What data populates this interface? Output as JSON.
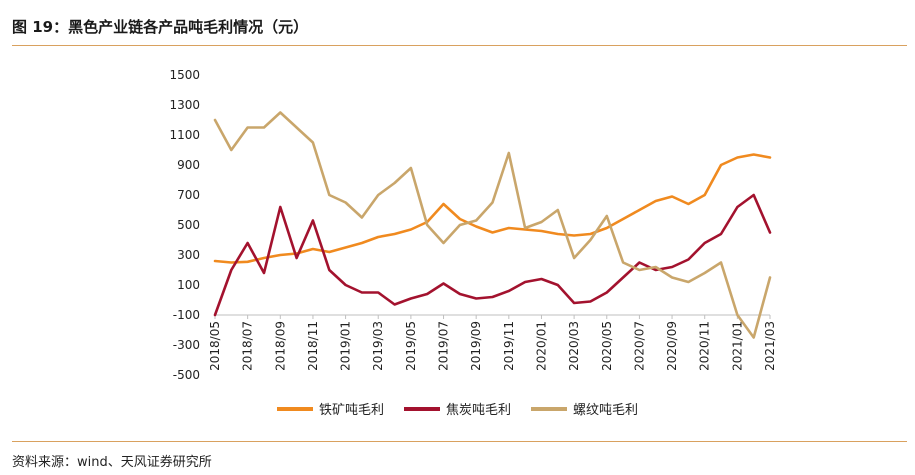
{
  "header": {
    "title": "图 19：黑色产业链各产品吨毛利情况（元）"
  },
  "footer": {
    "source": "资料来源：wind、天风证券研究所"
  },
  "chart_data": {
    "type": "line",
    "title": "图 19：黑色产业链各产品吨毛利情况（元）",
    "xlabel": "",
    "ylabel": "",
    "ylim": [
      -500,
      1500
    ],
    "yticks": [
      -500,
      -300,
      -100,
      100,
      300,
      500,
      700,
      900,
      1100,
      1300,
      1500
    ],
    "xlim": [
      "2018-05",
      "2021-03"
    ],
    "xticks": [
      "2018/05",
      "2018/07",
      "2018/09",
      "2018/11",
      "2019/01",
      "2019/03",
      "2019/05",
      "2019/07",
      "2019/09",
      "2019/11",
      "2020/01",
      "2020/03",
      "2020/05",
      "2020/07",
      "2020/09",
      "2020/11",
      "2021/01",
      "2021/03"
    ],
    "legend_position": "bottom",
    "grid": false,
    "series": [
      {
        "name": "铁矿吨毛利",
        "color": "#f08a1f",
        "points": [
          [
            "2018-05",
            260
          ],
          [
            "2018-06",
            250
          ],
          [
            "2018-07",
            255
          ],
          [
            "2018-08",
            280
          ],
          [
            "2018-09",
            300
          ],
          [
            "2018-10",
            310
          ],
          [
            "2018-11",
            340
          ],
          [
            "2018-12",
            320
          ],
          [
            "2019-01",
            350
          ],
          [
            "2019-02",
            380
          ],
          [
            "2019-03",
            420
          ],
          [
            "2019-04",
            440
          ],
          [
            "2019-05",
            470
          ],
          [
            "2019-06",
            520
          ],
          [
            "2019-07",
            640
          ],
          [
            "2019-08",
            540
          ],
          [
            "2019-09",
            490
          ],
          [
            "2019-10",
            450
          ],
          [
            "2019-11",
            480
          ],
          [
            "2019-12",
            470
          ],
          [
            "2020-01",
            460
          ],
          [
            "2020-02",
            440
          ],
          [
            "2020-03",
            430
          ],
          [
            "2020-04",
            440
          ],
          [
            "2020-05",
            480
          ],
          [
            "2020-06",
            540
          ],
          [
            "2020-07",
            600
          ],
          [
            "2020-08",
            660
          ],
          [
            "2020-09",
            690
          ],
          [
            "2020-10",
            640
          ],
          [
            "2020-11",
            700
          ],
          [
            "2020-12",
            900
          ],
          [
            "2021-01",
            950
          ],
          [
            "2021-02",
            970
          ],
          [
            "2021-03",
            950
          ]
        ]
      },
      {
        "name": "焦炭吨毛利",
        "color": "#a3122e",
        "points": [
          [
            "2018-05",
            -100
          ],
          [
            "2018-06",
            200
          ],
          [
            "2018-07",
            380
          ],
          [
            "2018-08",
            180
          ],
          [
            "2018-09",
            620
          ],
          [
            "2018-10",
            280
          ],
          [
            "2018-11",
            530
          ],
          [
            "2018-12",
            200
          ],
          [
            "2019-01",
            100
          ],
          [
            "2019-02",
            50
          ],
          [
            "2019-03",
            50
          ],
          [
            "2019-04",
            -30
          ],
          [
            "2019-05",
            10
          ],
          [
            "2019-06",
            40
          ],
          [
            "2019-07",
            110
          ],
          [
            "2019-08",
            40
          ],
          [
            "2019-09",
            10
          ],
          [
            "2019-10",
            20
          ],
          [
            "2019-11",
            60
          ],
          [
            "2019-12",
            120
          ],
          [
            "2020-01",
            140
          ],
          [
            "2020-02",
            100
          ],
          [
            "2020-03",
            -20
          ],
          [
            "2020-04",
            -10
          ],
          [
            "2020-05",
            50
          ],
          [
            "2020-06",
            150
          ],
          [
            "2020-07",
            250
          ],
          [
            "2020-08",
            200
          ],
          [
            "2020-09",
            220
          ],
          [
            "2020-10",
            270
          ],
          [
            "2020-11",
            380
          ],
          [
            "2020-12",
            440
          ],
          [
            "2021-01",
            620
          ],
          [
            "2021-02",
            700
          ],
          [
            "2021-03",
            450
          ]
        ]
      },
      {
        "name": "螺纹吨毛利",
        "color": "#c9a66b",
        "points": [
          [
            "2018-05",
            1200
          ],
          [
            "2018-06",
            1000
          ],
          [
            "2018-07",
            1150
          ],
          [
            "2018-08",
            1150
          ],
          [
            "2018-09",
            1250
          ],
          [
            "2018-10",
            1150
          ],
          [
            "2018-11",
            1050
          ],
          [
            "2018-12",
            700
          ],
          [
            "2019-01",
            650
          ],
          [
            "2019-02",
            550
          ],
          [
            "2019-03",
            700
          ],
          [
            "2019-04",
            780
          ],
          [
            "2019-05",
            880
          ],
          [
            "2019-06",
            500
          ],
          [
            "2019-07",
            380
          ],
          [
            "2019-08",
            500
          ],
          [
            "2019-09",
            530
          ],
          [
            "2019-10",
            650
          ],
          [
            "2019-11",
            980
          ],
          [
            "2019-12",
            480
          ],
          [
            "2020-01",
            520
          ],
          [
            "2020-02",
            600
          ],
          [
            "2020-03",
            280
          ],
          [
            "2020-04",
            400
          ],
          [
            "2020-05",
            560
          ],
          [
            "2020-06",
            250
          ],
          [
            "2020-07",
            200
          ],
          [
            "2020-08",
            220
          ],
          [
            "2020-09",
            150
          ],
          [
            "2020-10",
            120
          ],
          [
            "2020-11",
            180
          ],
          [
            "2020-12",
            250
          ],
          [
            "2021-01",
            -100
          ],
          [
            "2021-02",
            -250
          ],
          [
            "2021-03",
            150
          ]
        ]
      }
    ]
  }
}
